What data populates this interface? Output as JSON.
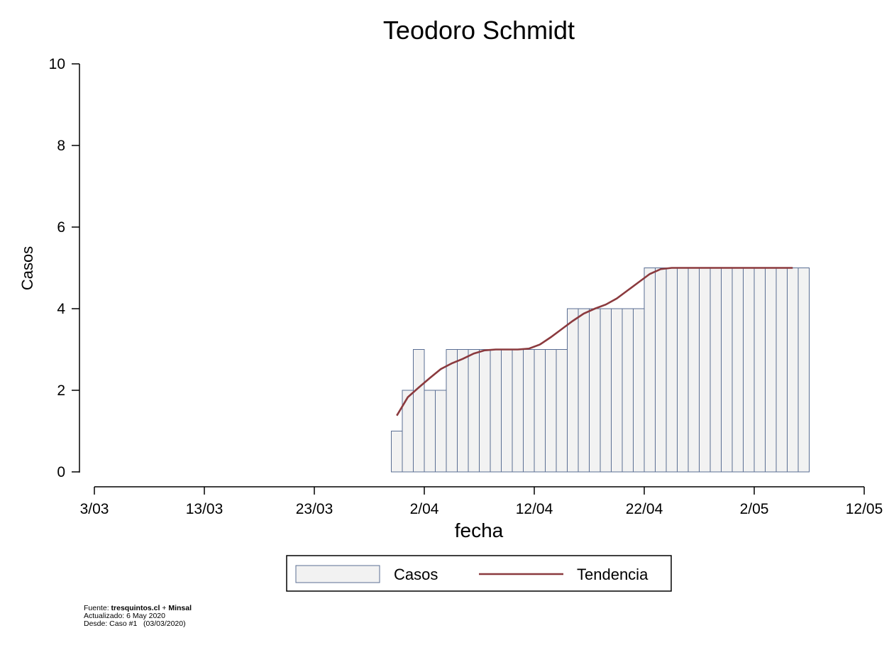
{
  "chart_data": {
    "type": "bar",
    "title": "Teodoro Schmidt",
    "xlabel": "fecha",
    "ylabel": "Casos",
    "ylim": [
      0,
      10
    ],
    "y_ticks": [
      0,
      2,
      4,
      6,
      8,
      10
    ],
    "x_range_days": [
      0,
      70
    ],
    "x_ticks": [
      {
        "day": 0,
        "label": "3/03"
      },
      {
        "day": 10,
        "label": "13/03"
      },
      {
        "day": 20,
        "label": "23/03"
      },
      {
        "day": 30,
        "label": "2/04"
      },
      {
        "day": 40,
        "label": "12/04"
      },
      {
        "day": 50,
        "label": "22/04"
      },
      {
        "day": 60,
        "label": "2/05"
      },
      {
        "day": 70,
        "label": "12/05"
      }
    ],
    "x_start_day": 27,
    "series": [
      {
        "name": "Casos",
        "type": "bar",
        "fill": "#f2f2f2",
        "stroke": "#5a6e93",
        "values": [
          1,
          2,
          3,
          2,
          2,
          3,
          3,
          3,
          3,
          3,
          3,
          3,
          3,
          3,
          3,
          3,
          4,
          4,
          4,
          4,
          4,
          4,
          4,
          5,
          5,
          5,
          5,
          5,
          5,
          5,
          5,
          5,
          5,
          5,
          5,
          5,
          5,
          5
        ]
      },
      {
        "name": "Tendencia",
        "type": "line",
        "color": "#8b3a3e",
        "values": [
          1.38,
          1.83,
          2.07,
          2.3,
          2.52,
          2.66,
          2.77,
          2.9,
          2.98,
          3.0,
          3.0,
          3.0,
          3.02,
          3.12,
          3.3,
          3.5,
          3.7,
          3.88,
          4.0,
          4.1,
          4.25,
          4.45,
          4.65,
          4.85,
          4.97,
          5.0,
          5.0,
          5.0,
          5.0,
          5.0,
          5.0,
          5.0,
          5.0,
          5.0,
          5.0,
          5.0,
          5.0
        ]
      }
    ],
    "legend": {
      "placement": "bottom",
      "entries": [
        "Casos",
        "Tendencia"
      ]
    }
  },
  "footer": {
    "source_prefix": "Fuente: ",
    "source_site": "tresquintos.cl",
    "source_sep": " + ",
    "source_org": "Minsal",
    "updated": "Actualizado: 6 May 2020",
    "since": "Desde: Caso #1   (03/03/2020)"
  }
}
